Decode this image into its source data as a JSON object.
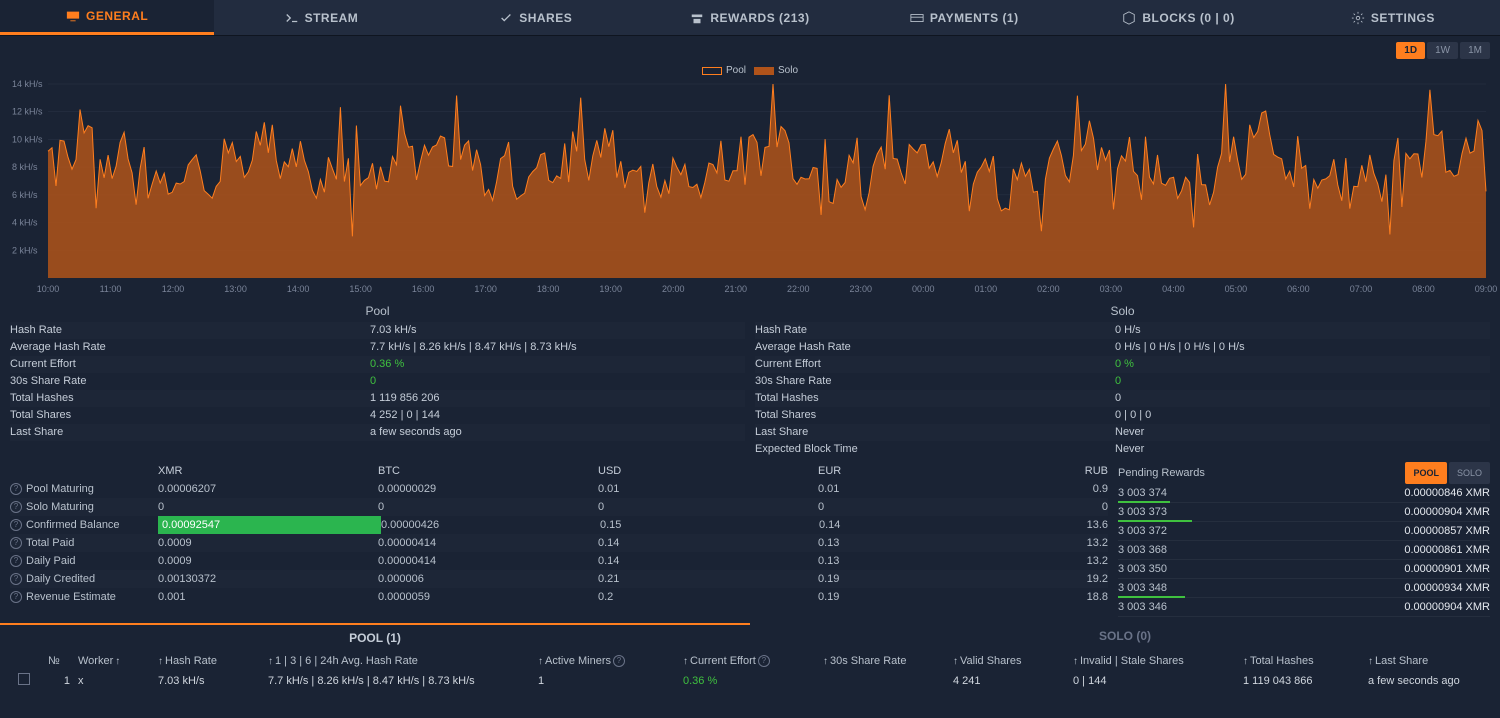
{
  "colors": {
    "bg": "#1a2334",
    "panel": "#222c3f",
    "accent": "#ff7e1e",
    "positive": "#3fc13f",
    "text": "#b8c1cc",
    "text_dim": "#7a8499",
    "solo_fill": "#b0531a"
  },
  "tabs": [
    {
      "label": "GENERAL",
      "icon": "monitor",
      "active": true
    },
    {
      "label": "STREAM",
      "icon": "terminal",
      "active": false
    },
    {
      "label": "SHARES",
      "icon": "check",
      "active": false
    },
    {
      "label": "REWARDS (213)",
      "icon": "rewards",
      "active": false
    },
    {
      "label": "PAYMENTS (1)",
      "icon": "card",
      "active": false
    },
    {
      "label": "BLOCKS (0 | 0)",
      "icon": "block",
      "active": false
    },
    {
      "label": "SETTINGS",
      "icon": "gear",
      "active": false
    }
  ],
  "time_range": [
    {
      "label": "1D",
      "active": true
    },
    {
      "label": "1W",
      "active": false
    },
    {
      "label": "1M",
      "active": false
    }
  ],
  "chart": {
    "legend": [
      {
        "label": "Pool",
        "border": "#ff7e1e",
        "fill": "none"
      },
      {
        "label": "Solo",
        "border": "#b0531a",
        "fill": "#b0531a"
      }
    ],
    "y_ticks": [
      "14 kH/s",
      "12 kH/s",
      "10 kH/s",
      "8 kH/s",
      "6 kH/s",
      "4 kH/s",
      "2 kH/s"
    ],
    "x_ticks": [
      "10:00",
      "11:00",
      "12:00",
      "13:00",
      "14:00",
      "15:00",
      "16:00",
      "17:00",
      "18:00",
      "19:00",
      "20:00",
      "21:00",
      "22:00",
      "23:00",
      "00:00",
      "01:00",
      "02:00",
      "03:00",
      "04:00",
      "05:00",
      "06:00",
      "07:00",
      "08:00",
      "09:00"
    ],
    "y_min": 0,
    "y_max": 14,
    "line_color": "#ff7e1e",
    "fill_color": "#b0531a"
  },
  "stats": {
    "pool": {
      "title": "Pool",
      "rows": [
        {
          "label": "Hash Rate",
          "value": "7.03 kH/s"
        },
        {
          "label": "Average Hash Rate",
          "value": "7.7 kH/s | 8.26 kH/s | 8.47 kH/s | 8.73 kH/s"
        },
        {
          "label": "Current Effort",
          "value": "0.36 %",
          "green": true
        },
        {
          "label": "30s Share Rate",
          "value": "0",
          "green": true
        },
        {
          "label": "Total Hashes",
          "value": "1 119 856 206"
        },
        {
          "label": "Total Shares",
          "value": "4 252 | 0 | 144"
        },
        {
          "label": "Last Share",
          "value": "a few seconds ago"
        }
      ]
    },
    "solo": {
      "title": "Solo",
      "rows": [
        {
          "label": "Hash Rate",
          "value": "0 H/s"
        },
        {
          "label": "Average Hash Rate",
          "value": "0 H/s | 0 H/s | 0 H/s | 0 H/s"
        },
        {
          "label": "Current Effort",
          "value": "0 %",
          "green": true
        },
        {
          "label": "30s Share Rate",
          "value": "0",
          "green": true
        },
        {
          "label": "Total Hashes",
          "value": "0"
        },
        {
          "label": "Total Shares",
          "value": "0 | 0 | 0"
        },
        {
          "label": "Last Share",
          "value": "Never"
        },
        {
          "label": "Expected Block Time",
          "value": "Never"
        }
      ]
    }
  },
  "currency": {
    "headers": [
      "XMR",
      "BTC",
      "USD",
      "EUR",
      "RUB"
    ],
    "rows": [
      {
        "label": "Pool Maturing",
        "v": [
          "0.00006207",
          "0.00000029",
          "0.01",
          "0.01",
          "0.9"
        ]
      },
      {
        "label": "Solo Maturing",
        "v": [
          "0",
          "0",
          "0",
          "0",
          "0"
        ]
      },
      {
        "label": "Confirmed Balance",
        "v": [
          "0.00092547",
          "0.00000426",
          "0.15",
          "0.14",
          "13.6"
        ],
        "hl_xmr": true
      },
      {
        "label": "Total Paid",
        "v": [
          "0.0009",
          "0.00000414",
          "0.14",
          "0.13",
          "13.2"
        ]
      },
      {
        "label": "Daily Paid",
        "v": [
          "0.0009",
          "0.00000414",
          "0.14",
          "0.13",
          "13.2"
        ]
      },
      {
        "label": "Daily Credited",
        "v": [
          "0.00130372",
          "0.000006",
          "0.21",
          "0.19",
          "19.2"
        ]
      },
      {
        "label": "Revenue Estimate",
        "v": [
          "0.001",
          "0.0000059",
          "0.2",
          "0.19",
          "18.8"
        ]
      }
    ]
  },
  "pending": {
    "title": "Pending Rewards",
    "tabs": [
      {
        "label": "POOL",
        "active": true
      },
      {
        "label": "SOLO",
        "active": false
      }
    ],
    "rows": [
      {
        "block": "3 003 374",
        "amt": "0.00000846 XMR",
        "p": 14
      },
      {
        "block": "3 003 373",
        "amt": "0.00000904 XMR",
        "p": 20
      },
      {
        "block": "3 003 372",
        "amt": "0.00000857 XMR",
        "p": 0
      },
      {
        "block": "3 003 368",
        "amt": "0.00000861 XMR",
        "p": 0
      },
      {
        "block": "3 003 350",
        "amt": "0.00000901 XMR",
        "p": 0
      },
      {
        "block": "3 003 348",
        "amt": "0.00000934 XMR",
        "p": 18
      },
      {
        "block": "3 003 346",
        "amt": "0.00000904 XMR",
        "p": 0
      }
    ]
  },
  "workers": {
    "tabs": [
      {
        "label": "POOL (1)",
        "active": true
      },
      {
        "label": "SOLO (0)",
        "active": false
      }
    ],
    "headers": {
      "n": "№",
      "worker": "Worker",
      "hr": "Hash Rate",
      "avg": "1 | 3 | 6 | 24h Avg. Hash Rate",
      "am": "Active Miners",
      "ce": "Current Effort",
      "sr": "30s Share Rate",
      "vs": "Valid Shares",
      "is": "Invalid | Stale Shares",
      "th": "Total Hashes",
      "ls": "Last Share"
    },
    "rows": [
      {
        "n": "1",
        "worker": "x",
        "hr": "7.03 kH/s",
        "avg": "7.7 kH/s | 8.26 kH/s | 8.47 kH/s | 8.73 kH/s",
        "am": "1",
        "ce": "0.36 %",
        "sr": "",
        "vs": "4 241",
        "is": "0 | 144",
        "th": "1 119 043 866",
        "ls": "a few seconds ago"
      }
    ]
  }
}
